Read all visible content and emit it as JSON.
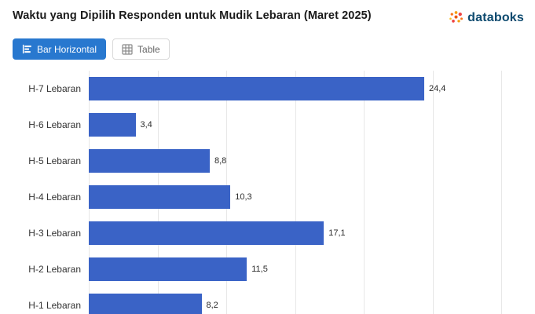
{
  "header": {
    "title": "Waktu yang Dipilih Responden untuk Mudik Lebaran (Maret 2025)",
    "logo_text": "databoks"
  },
  "toolbar": {
    "bar_button_label": "Bar Horizontal",
    "table_button_label": "Table"
  },
  "colors": {
    "bar": "#3a63c6",
    "active_button": "#2878cf",
    "logo_text": "#0d4a6f",
    "gridline": "#e7e7e7"
  },
  "chart_data": {
    "type": "bar",
    "orientation": "horizontal",
    "title": "Waktu yang Dipilih Responden untuk Mudik Lebaran (Maret 2025)",
    "categories": [
      "H-7 Lebaran",
      "H-6 Lebaran",
      "H-5 Lebaran",
      "H-4 Lebaran",
      "H-3 Lebaran",
      "H-2 Lebaran",
      "H-1 Lebaran"
    ],
    "values": [
      24.4,
      3.4,
      8.8,
      10.3,
      17.1,
      11.5,
      8.2
    ],
    "value_labels": [
      "24,4",
      "3,4",
      "8,8",
      "10,3",
      "17,1",
      "11,5",
      "8,2"
    ],
    "xlabel": "",
    "ylabel": "",
    "xlim": [
      0,
      30
    ],
    "gridline_step": 5,
    "grid": true,
    "legend": "none",
    "bar_color": "#3a63c6"
  }
}
